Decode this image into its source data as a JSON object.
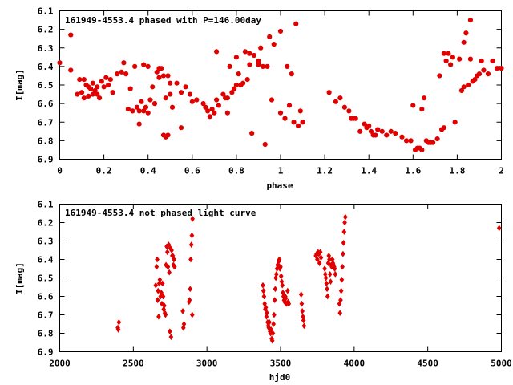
{
  "chart_data": [
    {
      "type": "scatter",
      "title": "161949-4553.4 phased with P=146.00day",
      "xlabel": "phase",
      "ylabel": "I[mag]",
      "xlim": [
        0,
        2
      ],
      "ylim": [
        6.9,
        6.1
      ],
      "y_inverted": true,
      "x_ticks": [
        "0",
        "0.2",
        "0.4",
        "0.6",
        "0.8",
        "1",
        "1.2",
        "1.4",
        "1.6",
        "1.8",
        "2"
      ],
      "y_ticks": [
        "6.1",
        "6.2",
        "6.3",
        "6.4",
        "6.5",
        "6.6",
        "6.7",
        "6.8",
        "6.9"
      ],
      "grid": false,
      "legend": "none",
      "marker_color": "#e00000",
      "points": [
        [
          0.0,
          6.38
        ],
        [
          0.05,
          6.23
        ],
        [
          0.05,
          6.42
        ],
        [
          0.08,
          6.55
        ],
        [
          0.09,
          6.47
        ],
        [
          0.1,
          6.54
        ],
        [
          0.11,
          6.47
        ],
        [
          0.11,
          6.57
        ],
        [
          0.12,
          6.5
        ],
        [
          0.13,
          6.51
        ],
        [
          0.13,
          6.56
        ],
        [
          0.14,
          6.52
        ],
        [
          0.15,
          6.55
        ],
        [
          0.15,
          6.49
        ],
        [
          0.16,
          6.53
        ],
        [
          0.17,
          6.51
        ],
        [
          0.17,
          6.55
        ],
        [
          0.18,
          6.57
        ],
        [
          0.19,
          6.48
        ],
        [
          0.2,
          6.51
        ],
        [
          0.21,
          6.46
        ],
        [
          0.22,
          6.5
        ],
        [
          0.23,
          6.47
        ],
        [
          0.24,
          6.54
        ],
        [
          0.26,
          6.44
        ],
        [
          0.28,
          6.43
        ],
        [
          0.29,
          6.38
        ],
        [
          0.3,
          6.44
        ],
        [
          0.31,
          6.63
        ],
        [
          0.32,
          6.52
        ],
        [
          0.33,
          6.64
        ],
        [
          0.34,
          6.4
        ],
        [
          0.35,
          6.62
        ],
        [
          0.36,
          6.64
        ],
        [
          0.36,
          6.71
        ],
        [
          0.37,
          6.59
        ],
        [
          0.38,
          6.39
        ],
        [
          0.38,
          6.64
        ],
        [
          0.39,
          6.62
        ],
        [
          0.4,
          6.4
        ],
        [
          0.4,
          6.65
        ],
        [
          0.41,
          6.58
        ],
        [
          0.42,
          6.51
        ],
        [
          0.43,
          6.6
        ],
        [
          0.44,
          6.43
        ],
        [
          0.45,
          6.41
        ],
        [
          0.45,
          6.46
        ],
        [
          0.46,
          6.41
        ],
        [
          0.47,
          6.45
        ],
        [
          0.47,
          6.77
        ],
        [
          0.48,
          6.57
        ],
        [
          0.48,
          6.78
        ],
        [
          0.49,
          6.45
        ],
        [
          0.49,
          6.77
        ],
        [
          0.5,
          6.49
        ],
        [
          0.5,
          6.55
        ],
        [
          0.51,
          6.62
        ],
        [
          0.53,
          6.49
        ],
        [
          0.55,
          6.54
        ],
        [
          0.55,
          6.73
        ],
        [
          0.57,
          6.51
        ],
        [
          0.59,
          6.55
        ],
        [
          0.6,
          6.59
        ],
        [
          0.62,
          6.58
        ],
        [
          0.65,
          6.6
        ],
        [
          0.66,
          6.62
        ],
        [
          0.67,
          6.64
        ],
        [
          0.68,
          6.67
        ],
        [
          0.69,
          6.63
        ],
        [
          0.7,
          6.65
        ],
        [
          0.71,
          6.58
        ],
        [
          0.71,
          6.32
        ],
        [
          0.72,
          6.61
        ],
        [
          0.74,
          6.55
        ],
        [
          0.75,
          6.57
        ],
        [
          0.76,
          6.65
        ],
        [
          0.76,
          6.57
        ],
        [
          0.77,
          6.4
        ],
        [
          0.78,
          6.54
        ],
        [
          0.79,
          6.52
        ],
        [
          0.8,
          6.35
        ],
        [
          0.8,
          6.5
        ],
        [
          0.81,
          6.44
        ],
        [
          0.82,
          6.5
        ],
        [
          0.83,
          6.49
        ],
        [
          0.84,
          6.32
        ],
        [
          0.85,
          6.47
        ],
        [
          0.86,
          6.33
        ],
        [
          0.86,
          6.39
        ],
        [
          0.87,
          6.76
        ],
        [
          0.88,
          6.34
        ],
        [
          0.9,
          6.39
        ],
        [
          0.9,
          6.37
        ],
        [
          0.91,
          6.3
        ],
        [
          0.92,
          6.4
        ],
        [
          0.93,
          6.82
        ],
        [
          0.94,
          6.4
        ],
        [
          0.95,
          6.24
        ],
        [
          0.96,
          6.58
        ],
        [
          0.97,
          6.28
        ],
        [
          1.0,
          6.21
        ],
        [
          1.0,
          6.65
        ],
        [
          1.02,
          6.68
        ],
        [
          1.03,
          6.4
        ],
        [
          1.04,
          6.61
        ],
        [
          1.05,
          6.44
        ],
        [
          1.06,
          6.7
        ],
        [
          1.07,
          6.17
        ],
        [
          1.08,
          6.72
        ],
        [
          1.09,
          6.64
        ],
        [
          1.1,
          6.7
        ],
        [
          1.22,
          6.54
        ],
        [
          1.25,
          6.59
        ],
        [
          1.27,
          6.57
        ],
        [
          1.29,
          6.62
        ],
        [
          1.31,
          6.64
        ],
        [
          1.32,
          6.68
        ],
        [
          1.33,
          6.68
        ],
        [
          1.34,
          6.68
        ],
        [
          1.36,
          6.75
        ],
        [
          1.38,
          6.71
        ],
        [
          1.39,
          6.73
        ],
        [
          1.4,
          6.72
        ],
        [
          1.41,
          6.75
        ],
        [
          1.42,
          6.77
        ],
        [
          1.43,
          6.77
        ],
        [
          1.44,
          6.74
        ],
        [
          1.46,
          6.75
        ],
        [
          1.48,
          6.77
        ],
        [
          1.5,
          6.75
        ],
        [
          1.52,
          6.76
        ],
        [
          1.55,
          6.78
        ],
        [
          1.57,
          6.8
        ],
        [
          1.59,
          6.8
        ],
        [
          1.6,
          6.61
        ],
        [
          1.61,
          6.85
        ],
        [
          1.62,
          6.84
        ],
        [
          1.63,
          6.84
        ],
        [
          1.64,
          6.85
        ],
        [
          1.64,
          6.63
        ],
        [
          1.65,
          6.57
        ],
        [
          1.66,
          6.8
        ],
        [
          1.67,
          6.81
        ],
        [
          1.68,
          6.81
        ],
        [
          1.69,
          6.81
        ],
        [
          1.71,
          6.79
        ],
        [
          1.72,
          6.45
        ],
        [
          1.73,
          6.74
        ],
        [
          1.74,
          6.73
        ],
        [
          1.74,
          6.33
        ],
        [
          1.75,
          6.37
        ],
        [
          1.76,
          6.33
        ],
        [
          1.77,
          6.39
        ],
        [
          1.78,
          6.35
        ],
        [
          1.79,
          6.7
        ],
        [
          1.81,
          6.36
        ],
        [
          1.82,
          6.53
        ],
        [
          1.83,
          6.27
        ],
        [
          1.83,
          6.51
        ],
        [
          1.84,
          6.22
        ],
        [
          1.85,
          6.5
        ],
        [
          1.86,
          6.15
        ],
        [
          1.86,
          6.36
        ],
        [
          1.87,
          6.48
        ],
        [
          1.88,
          6.47
        ],
        [
          1.89,
          6.45
        ],
        [
          1.9,
          6.44
        ],
        [
          1.91,
          6.37
        ],
        [
          1.92,
          6.42
        ],
        [
          1.94,
          6.44
        ],
        [
          1.96,
          6.37
        ],
        [
          1.98,
          6.41
        ],
        [
          2.0,
          6.41
        ]
      ]
    },
    {
      "type": "scatter",
      "title": "161949-4553.4 not phased light curve",
      "xlabel": "hjd0",
      "ylabel": "I[mag]",
      "xlim": [
        2000,
        5000
      ],
      "ylim": [
        6.9,
        6.1
      ],
      "y_inverted": true,
      "x_ticks": [
        "2000",
        "2500",
        "3000",
        "3500",
        "4000",
        "4500",
        "5000"
      ],
      "y_ticks": [
        "6.1",
        "6.2",
        "6.3",
        "6.4",
        "6.5",
        "6.6",
        "6.7",
        "6.8",
        "6.9"
      ],
      "grid": false,
      "legend": "none",
      "marker_color": "#e00000",
      "points": [
        [
          2395,
          6.77
        ],
        [
          2398,
          6.78
        ],
        [
          2402,
          6.74
        ],
        [
          2652,
          6.54
        ],
        [
          2658,
          6.44
        ],
        [
          2662,
          6.4
        ],
        [
          2665,
          6.62
        ],
        [
          2668,
          6.57
        ],
        [
          2672,
          6.71
        ],
        [
          2676,
          6.53
        ],
        [
          2680,
          6.51
        ],
        [
          2685,
          6.6
        ],
        [
          2690,
          6.58
        ],
        [
          2694,
          6.64
        ],
        [
          2698,
          6.53
        ],
        [
          2702,
          6.6
        ],
        [
          2706,
          6.67
        ],
        [
          2710,
          6.65
        ],
        [
          2714,
          6.69
        ],
        [
          2718,
          6.7
        ],
        [
          2722,
          6.43
        ],
        [
          2727,
          6.33
        ],
        [
          2731,
          6.36
        ],
        [
          2735,
          6.44
        ],
        [
          2740,
          6.32
        ],
        [
          2744,
          6.47
        ],
        [
          2748,
          6.79
        ],
        [
          2752,
          6.34
        ],
        [
          2756,
          6.82
        ],
        [
          2760,
          6.35
        ],
        [
          2764,
          6.38
        ],
        [
          2768,
          6.38
        ],
        [
          2772,
          6.43
        ],
        [
          2776,
          6.4
        ],
        [
          2780,
          6.44
        ],
        [
          2836,
          6.68
        ],
        [
          2840,
          6.77
        ],
        [
          2844,
          6.75
        ],
        [
          2878,
          6.63
        ],
        [
          2882,
          6.62
        ],
        [
          2886,
          6.56
        ],
        [
          2890,
          6.4
        ],
        [
          2894,
          6.32
        ],
        [
          2898,
          6.27
        ],
        [
          2900,
          6.7
        ],
        [
          2902,
          6.18
        ],
        [
          3380,
          6.54
        ],
        [
          3384,
          6.57
        ],
        [
          3388,
          6.6
        ],
        [
          3392,
          6.64
        ],
        [
          3396,
          6.67
        ],
        [
          3400,
          6.66
        ],
        [
          3404,
          6.71
        ],
        [
          3408,
          6.69
        ],
        [
          3412,
          6.74
        ],
        [
          3416,
          6.76
        ],
        [
          3420,
          6.77
        ],
        [
          3424,
          6.74
        ],
        [
          3428,
          6.79
        ],
        [
          3432,
          6.8
        ],
        [
          3436,
          6.78
        ],
        [
          3440,
          6.83
        ],
        [
          3444,
          6.84
        ],
        [
          3448,
          6.8
        ],
        [
          3452,
          6.75
        ],
        [
          3456,
          6.7
        ],
        [
          3460,
          6.62
        ],
        [
          3464,
          6.56
        ],
        [
          3468,
          6.5
        ],
        [
          3472,
          6.48
        ],
        [
          3476,
          6.45
        ],
        [
          3480,
          6.43
        ],
        [
          3484,
          6.43
        ],
        [
          3488,
          6.41
        ],
        [
          3492,
          6.4
        ],
        [
          3496,
          6.45
        ],
        [
          3500,
          6.44
        ],
        [
          3504,
          6.49
        ],
        [
          3508,
          6.52
        ],
        [
          3512,
          6.54
        ],
        [
          3516,
          6.58
        ],
        [
          3520,
          6.6
        ],
        [
          3524,
          6.62
        ],
        [
          3528,
          6.63
        ],
        [
          3532,
          6.6
        ],
        [
          3536,
          6.61
        ],
        [
          3540,
          6.64
        ],
        [
          3548,
          6.57
        ],
        [
          3552,
          6.63
        ],
        [
          3556,
          6.64
        ],
        [
          3640,
          6.59
        ],
        [
          3644,
          6.64
        ],
        [
          3648,
          6.68
        ],
        [
          3652,
          6.71
        ],
        [
          3656,
          6.73
        ],
        [
          3660,
          6.76
        ],
        [
          3740,
          6.38
        ],
        [
          3745,
          6.37
        ],
        [
          3750,
          6.4
        ],
        [
          3755,
          6.36
        ],
        [
          3760,
          6.37
        ],
        [
          3765,
          6.42
        ],
        [
          3770,
          6.36
        ],
        [
          3775,
          6.39
        ],
        [
          3800,
          6.45
        ],
        [
          3804,
          6.48
        ],
        [
          3808,
          6.5
        ],
        [
          3812,
          6.53
        ],
        [
          3816,
          6.56
        ],
        [
          3820,
          6.6
        ],
        [
          3824,
          6.42
        ],
        [
          3828,
          6.38
        ],
        [
          3832,
          6.4
        ],
        [
          3836,
          6.48
        ],
        [
          3840,
          6.52
        ],
        [
          3844,
          6.43
        ],
        [
          3848,
          6.44
        ],
        [
          3852,
          6.4
        ],
        [
          3856,
          6.42
        ],
        [
          3860,
          6.43
        ],
        [
          3864,
          6.44
        ],
        [
          3868,
          6.45
        ],
        [
          3872,
          6.48
        ],
        [
          3900,
          6.64
        ],
        [
          3904,
          6.69
        ],
        [
          3908,
          6.62
        ],
        [
          3912,
          6.57
        ],
        [
          3916,
          6.51
        ],
        [
          3920,
          6.44
        ],
        [
          3924,
          6.37
        ],
        [
          3928,
          6.31
        ],
        [
          3932,
          6.25
        ],
        [
          3936,
          6.2
        ],
        [
          3940,
          6.17
        ],
        [
          4985,
          6.23
        ]
      ]
    }
  ]
}
